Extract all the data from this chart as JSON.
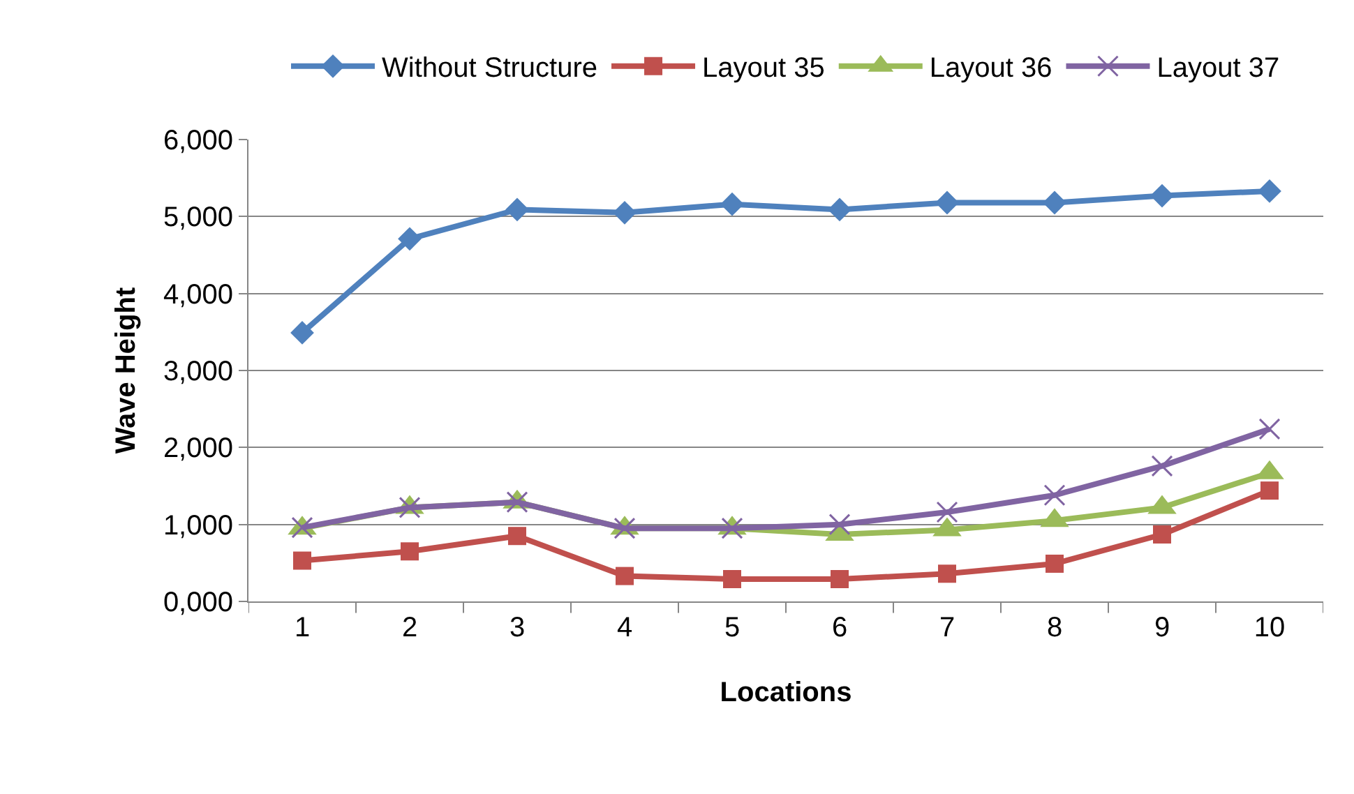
{
  "chart_data": {
    "type": "line",
    "xlabel": "Locations",
    "ylabel": "Wave Height",
    "categories": [
      "1",
      "2",
      "3",
      "4",
      "5",
      "6",
      "7",
      "8",
      "9",
      "10"
    ],
    "series": [
      {
        "name": "Without Structure",
        "color": "#4f81bd",
        "marker": "diamond",
        "values": [
          3490,
          4710,
          5090,
          5050,
          5160,
          5090,
          5180,
          5180,
          5270,
          5330
        ]
      },
      {
        "name": "Layout 35",
        "color": "#c0504d",
        "marker": "square",
        "values": [
          530,
          650,
          850,
          330,
          290,
          290,
          360,
          490,
          870,
          1440
        ]
      },
      {
        "name": "Layout 36",
        "color": "#9bbb59",
        "marker": "triangle",
        "values": [
          950,
          1220,
          1290,
          950,
          950,
          870,
          930,
          1050,
          1220,
          1670
        ]
      },
      {
        "name": "Layout 37",
        "color": "#8064a2",
        "marker": "cross",
        "values": [
          960,
          1220,
          1290,
          950,
          950,
          1000,
          1160,
          1380,
          1760,
          2240
        ]
      }
    ],
    "ylim": [
      0,
      6000
    ],
    "yticks": [
      {
        "value": 0,
        "label": "0,000"
      },
      {
        "value": 1000,
        "label": "1,000"
      },
      {
        "value": 2000,
        "label": "2,000"
      },
      {
        "value": 3000,
        "label": "3,000"
      },
      {
        "value": 4000,
        "label": "4,000"
      },
      {
        "value": 5000,
        "label": "5,000"
      },
      {
        "value": 6000,
        "label": "6,000"
      }
    ],
    "grid": "y",
    "legend": "top",
    "line_style": "solid"
  }
}
